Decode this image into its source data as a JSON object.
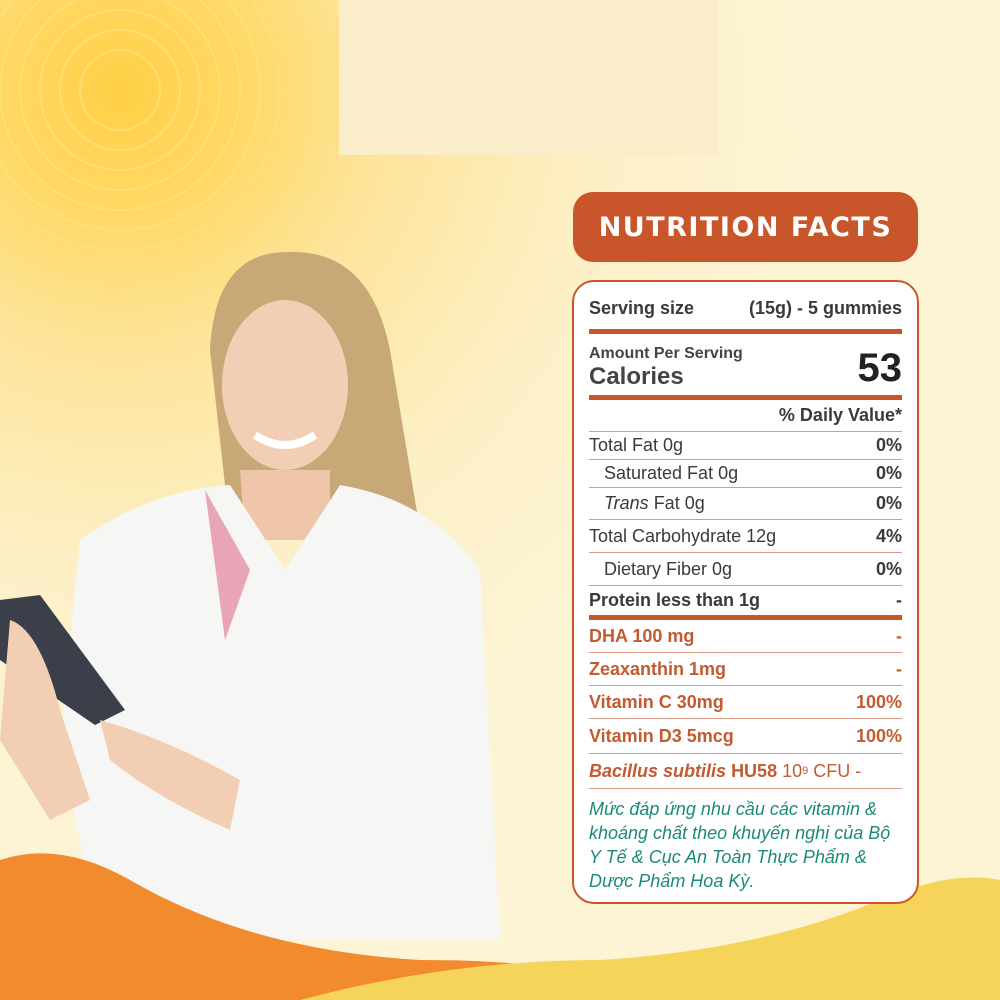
{
  "title": "Nutrition Facts",
  "serving": {
    "label": "Serving size",
    "value": "(15g) - 5 gummies"
  },
  "amount_per_serving": "Amount Per Serving",
  "calories": {
    "label": "Calories",
    "value": "53"
  },
  "daily_value_header": "% Daily Value*",
  "nutrients": [
    {
      "name": "Total Fat 0g",
      "dv": "0%"
    },
    {
      "name": "Saturated Fat 0g",
      "dv": "0%"
    },
    {
      "name_italic": "Trans",
      "name": " Fat 0g",
      "dv": "0%"
    },
    {
      "name": "Total Carbohydrate 12g",
      "dv": "4%"
    },
    {
      "name": "Dietary Fiber 0g",
      "dv": "0%"
    },
    {
      "name": "Protein less than 1g",
      "dv": "-"
    }
  ],
  "supplements": [
    {
      "name": "DHA 100 mg",
      "dv": "-"
    },
    {
      "name": "Zeaxanthin 1mg",
      "dv": "-"
    },
    {
      "name": "Vitamin C 30mg",
      "dv": "100%"
    },
    {
      "name": "Vitamin D3 5mcg",
      "dv": "100%"
    }
  ],
  "probiotic": {
    "name_italic": "Bacillus subtilis",
    "strain": "HU58",
    "count": "10",
    "exp": "9",
    "unit": "CFU -"
  },
  "note": "Mức đáp ứng nhu cầu các vitamin & khoáng chất theo khuyến nghị của Bộ Y Tế & Cục An Toàn Thực Phẩm & Dược Phẩm Hoa Kỳ.",
  "colors": {
    "accent": "#c9552a",
    "note": "#1b8a78",
    "background": "#fdf0c6"
  }
}
